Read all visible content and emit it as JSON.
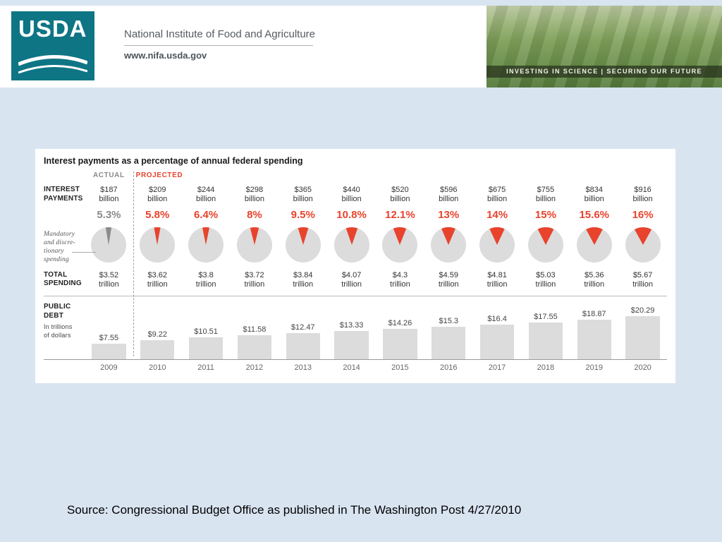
{
  "header": {
    "logo_text": "USDA",
    "org_name": "National Institute of Food and Agriculture",
    "url": "www.nifa.usda.gov",
    "photo_tagline": "INVESTING IN SCIENCE | SECURING OUR FUTURE"
  },
  "source_line": "Source: Congressional Budget Office as published in The Washington Post 4/27/2010",
  "chart_data": {
    "type": "table",
    "title": "Interest payments as a percentage of annual federal spending",
    "years": [
      "2009",
      "2010",
      "2011",
      "2012",
      "2013",
      "2014",
      "2015",
      "2016",
      "2017",
      "2018",
      "2019",
      "2020"
    ],
    "column_group_labels": {
      "actual": "ACTUAL",
      "projected": "PROJECTED"
    },
    "interest_payments": {
      "label_lines": [
        "INTEREST",
        "PAYMENTS"
      ],
      "unit": "billion",
      "values": [
        "$187",
        "$209",
        "$244",
        "$298",
        "$365",
        "$440",
        "$520",
        "$596",
        "$675",
        "$755",
        "$834",
        "$916"
      ]
    },
    "percent_of_spending": {
      "display": [
        "5.3%",
        "5.8%",
        "6.4%",
        "8%",
        "9.5%",
        "10.8%",
        "12.1%",
        "13%",
        "14%",
        "15%",
        "15.6%",
        "16%"
      ],
      "values": [
        5.3,
        5.8,
        6.4,
        8,
        9.5,
        10.8,
        12.1,
        13,
        14,
        15,
        15.6,
        16
      ]
    },
    "pie_annotation_lines": [
      "Mandatory",
      "and discre-",
      "tionary",
      "spending"
    ],
    "total_spending": {
      "label_lines": [
        "TOTAL",
        "SPENDING"
      ],
      "unit": "trillion",
      "values": [
        "$3.52",
        "$3.62",
        "$3.8",
        "$3.72",
        "$3.84",
        "$4.07",
        "$4.3",
        "$4.59",
        "$4.81",
        "$5.03",
        "$5.36",
        "$5.67"
      ]
    },
    "public_debt": {
      "label_lines": [
        "PUBLIC",
        "DEBT"
      ],
      "sublabel_lines": [
        "In trillions",
        "of dollars"
      ],
      "display": [
        "$7.55",
        "$9.22",
        "$10.51",
        "$11.58",
        "$12.47",
        "$13.33",
        "$14.26",
        "$15.3",
        "$16.4",
        "$17.55",
        "$18.87",
        "$20.29"
      ],
      "values": [
        7.55,
        9.22,
        10.51,
        11.58,
        12.47,
        13.33,
        14.26,
        15.3,
        16.4,
        17.55,
        18.87,
        20.29
      ]
    },
    "colors": {
      "projected_red": "#e8432d",
      "actual_gray": "#8a8a8a",
      "pie_fill": "#dcdcdc",
      "bar_fill": "#dcdcdc",
      "text_dark": "#333333"
    }
  }
}
